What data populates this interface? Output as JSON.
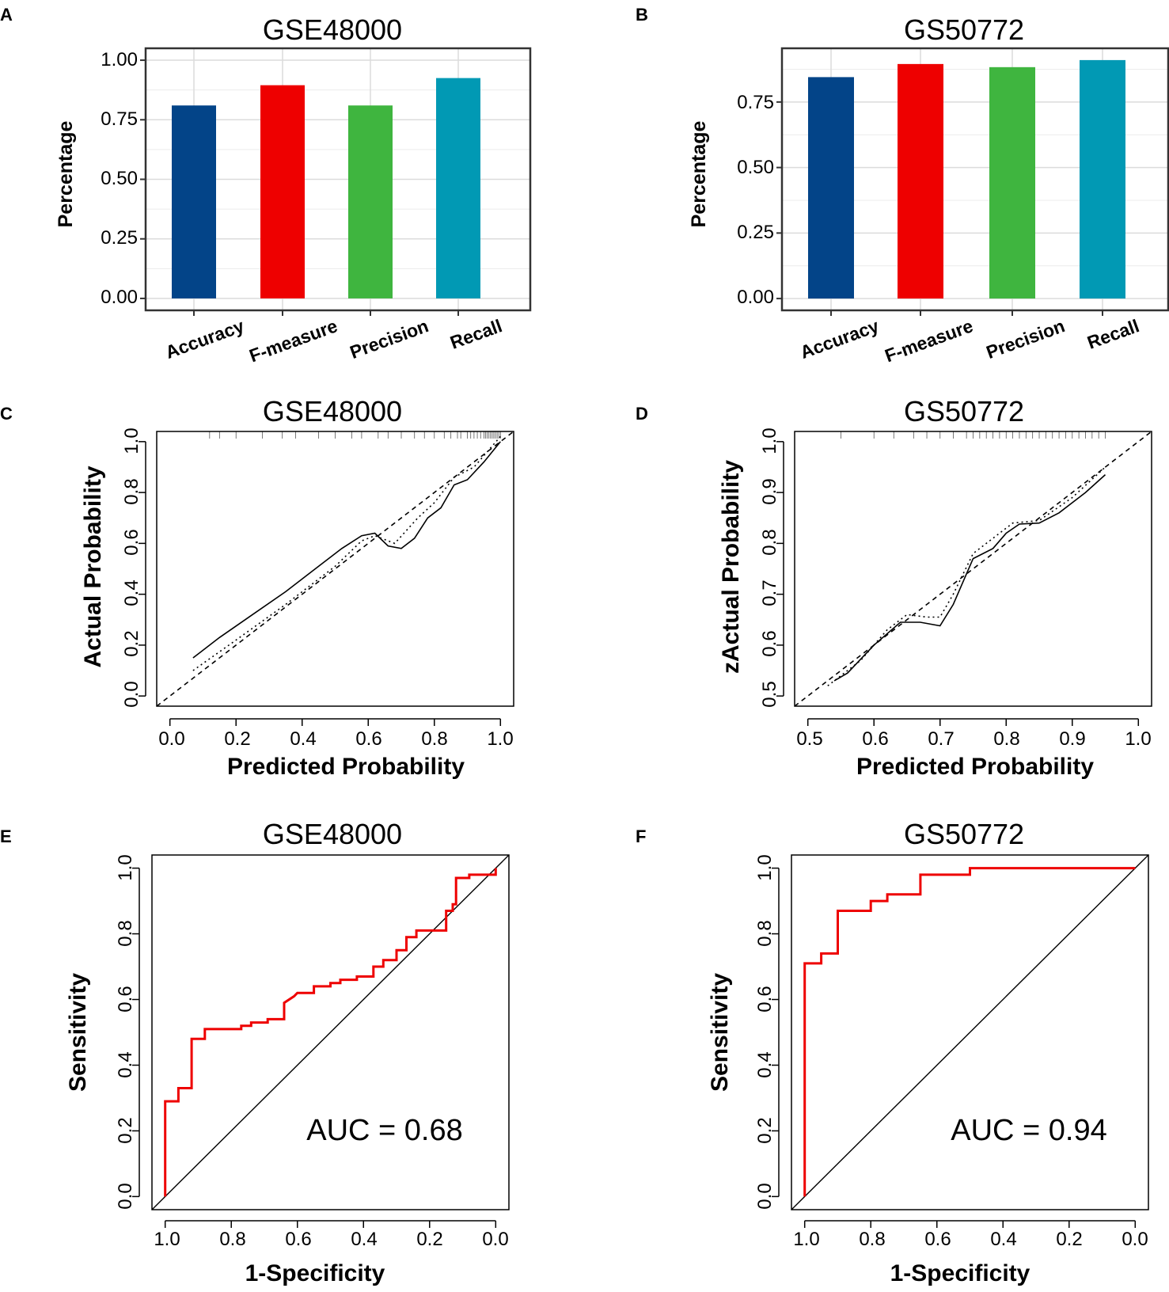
{
  "panels": {
    "A": {
      "letter": "A",
      "title": "GSE48000"
    },
    "B": {
      "letter": "B",
      "title": "GS50772"
    },
    "C": {
      "letter": "C",
      "title": "GSE48000"
    },
    "D": {
      "letter": "D",
      "title": "GS50772"
    },
    "E": {
      "letter": "E",
      "title": "GSE48000",
      "auc_label": "AUC = 0.68"
    },
    "F": {
      "letter": "F",
      "title": "GS50772",
      "auc_label": "AUC = 0.94"
    }
  },
  "chart_data": [
    {
      "panel": "A",
      "type": "bar",
      "title": "GSE48000",
      "categories": [
        "Accuracy",
        "F-measure",
        "Precision",
        "Recall"
      ],
      "values": [
        0.81,
        0.895,
        0.81,
        0.925
      ],
      "colors": [
        "#034488",
        "#ee0000",
        "#3fb53f",
        "#0199b4"
      ],
      "ylabel": "Percentage",
      "xlabel": "",
      "ylim": [
        -0.05,
        1.05
      ],
      "yticks": [
        "0.00",
        "0.25",
        "0.50",
        "0.75",
        "1.00"
      ],
      "grid": true
    },
    {
      "panel": "B",
      "type": "bar",
      "title": "GS50772",
      "categories": [
        "Accuracy",
        "F-measure",
        "Precision",
        "Recall"
      ],
      "values": [
        0.845,
        0.895,
        0.883,
        0.91
      ],
      "colors": [
        "#034488",
        "#ee0000",
        "#3fb53f",
        "#0199b4"
      ],
      "ylabel": "Percentage",
      "xlabel": "",
      "ylim": [
        -0.045,
        0.955
      ],
      "yticks": [
        "0.00",
        "0.25",
        "0.50",
        "0.75"
      ],
      "grid": true
    },
    {
      "panel": "C",
      "type": "line",
      "title": "GSE48000",
      "xlabel": "Predicted Probability",
      "ylabel": "Actual Probability",
      "xlim": [
        -0.04,
        1.04
      ],
      "ylim": [
        -0.04,
        1.04
      ],
      "xticks": [
        "0.0",
        "0.2",
        "0.4",
        "0.6",
        "0.8",
        "1.0"
      ],
      "yticks": [
        "0.0",
        "0.2",
        "0.4",
        "0.6",
        "0.8",
        "1.0"
      ],
      "rug": [
        0.12,
        0.15,
        0.2,
        0.28,
        0.34,
        0.38,
        0.45,
        0.5,
        0.55,
        0.58,
        0.63,
        0.66,
        0.7,
        0.74,
        0.77,
        0.8,
        0.83,
        0.85,
        0.87,
        0.88,
        0.9,
        0.91,
        0.92,
        0.93,
        0.94,
        0.95,
        0.955,
        0.96,
        0.965,
        0.97,
        0.975,
        0.98,
        0.985,
        0.99,
        0.995,
        1.0
      ],
      "series": [
        {
          "name": "ideal",
          "style": "dashed",
          "x": [
            -0.04,
            1.04
          ],
          "y": [
            -0.04,
            1.04
          ]
        },
        {
          "name": "apparent",
          "style": "dotted",
          "x": [
            0.07,
            0.2,
            0.35,
            0.5,
            0.58,
            0.62,
            0.68,
            0.75,
            0.8,
            0.86,
            0.92,
            1.0
          ],
          "y": [
            0.1,
            0.22,
            0.36,
            0.51,
            0.61,
            0.63,
            0.6,
            0.7,
            0.76,
            0.86,
            0.9,
            1.02
          ]
        },
        {
          "name": "bias-corrected",
          "style": "solid",
          "x": [
            0.07,
            0.15,
            0.25,
            0.35,
            0.45,
            0.52,
            0.58,
            0.62,
            0.66,
            0.7,
            0.74,
            0.78,
            0.82,
            0.86,
            0.9,
            0.95,
            1.0
          ],
          "y": [
            0.15,
            0.23,
            0.32,
            0.41,
            0.51,
            0.58,
            0.63,
            0.64,
            0.59,
            0.58,
            0.62,
            0.7,
            0.74,
            0.83,
            0.85,
            0.92,
            1.0
          ]
        }
      ]
    },
    {
      "panel": "D",
      "type": "line",
      "title": "GS50772",
      "xlabel": "Predicted Probability",
      "ylabel": "zActual Probability",
      "xlim": [
        0.48,
        1.02
      ],
      "ylim": [
        0.48,
        1.02
      ],
      "xticks": [
        "0.5",
        "0.6",
        "0.7",
        "0.8",
        "0.9",
        "1.0"
      ],
      "yticks": [
        "0.5",
        "0.6",
        "0.7",
        "0.8",
        "0.9",
        "1.0"
      ],
      "rug": [
        0.55,
        0.6,
        0.63,
        0.66,
        0.68,
        0.7,
        0.72,
        0.74,
        0.75,
        0.76,
        0.77,
        0.78,
        0.79,
        0.8,
        0.81,
        0.82,
        0.83,
        0.84,
        0.85,
        0.86,
        0.87,
        0.88,
        0.89,
        0.9,
        0.91,
        0.92,
        0.93,
        0.94,
        0.95
      ],
      "series": [
        {
          "name": "ideal",
          "style": "dashed",
          "x": [
            0.48,
            1.02
          ],
          "y": [
            0.48,
            1.02
          ]
        },
        {
          "name": "apparent",
          "style": "dotted",
          "x": [
            0.53,
            0.58,
            0.62,
            0.65,
            0.68,
            0.7,
            0.72,
            0.75,
            0.78,
            0.81,
            0.85,
            0.9,
            0.95
          ],
          "y": [
            0.52,
            0.57,
            0.63,
            0.66,
            0.655,
            0.655,
            0.7,
            0.78,
            0.81,
            0.84,
            0.845,
            0.89,
            0.95
          ]
        },
        {
          "name": "bias-corrected",
          "style": "solid",
          "x": [
            0.54,
            0.56,
            0.6,
            0.64,
            0.67,
            0.7,
            0.72,
            0.75,
            0.78,
            0.8,
            0.82,
            0.85,
            0.88,
            0.92,
            0.95
          ],
          "y": [
            0.53,
            0.545,
            0.6,
            0.645,
            0.645,
            0.638,
            0.68,
            0.77,
            0.79,
            0.82,
            0.838,
            0.84,
            0.86,
            0.9,
            0.935
          ]
        }
      ]
    },
    {
      "panel": "E",
      "type": "line",
      "title": "GSE48000",
      "xlabel": "1-Specificity",
      "ylabel": "Sensitivity",
      "xlim": [
        1.04,
        -0.04
      ],
      "ylim": [
        -0.04,
        1.04
      ],
      "xticks": [
        "1.0",
        "0.8",
        "0.6",
        "0.4",
        "0.2",
        "0.0"
      ],
      "yticks": [
        "0.0",
        "0.2",
        "0.4",
        "0.6",
        "0.8",
        "1.0"
      ],
      "auc": 0.68,
      "series": [
        {
          "name": "reference",
          "style": "solid",
          "color": "#000000",
          "x": [
            1.04,
            -0.04
          ],
          "y": [
            -0.04,
            1.04
          ]
        },
        {
          "name": "ROC",
          "style": "step",
          "color": "#ee0000",
          "x": [
            1.0,
            1.0,
            0.96,
            0.96,
            0.92,
            0.92,
            0.88,
            0.88,
            0.77,
            0.77,
            0.74,
            0.74,
            0.69,
            0.69,
            0.64,
            0.64,
            0.61,
            0.6,
            0.55,
            0.55,
            0.5,
            0.5,
            0.47,
            0.47,
            0.42,
            0.42,
            0.37,
            0.37,
            0.34,
            0.34,
            0.3,
            0.3,
            0.27,
            0.27,
            0.24,
            0.24,
            0.21,
            0.21,
            0.15,
            0.15,
            0.13,
            0.13,
            0.12,
            0.12,
            0.08,
            0.08,
            0.0,
            0.0
          ],
          "y": [
            0.0,
            0.29,
            0.29,
            0.33,
            0.33,
            0.48,
            0.48,
            0.51,
            0.51,
            0.52,
            0.52,
            0.53,
            0.53,
            0.54,
            0.54,
            0.59,
            0.61,
            0.62,
            0.62,
            0.64,
            0.64,
            0.65,
            0.65,
            0.66,
            0.66,
            0.67,
            0.67,
            0.7,
            0.7,
            0.72,
            0.72,
            0.75,
            0.75,
            0.79,
            0.79,
            0.81,
            0.81,
            0.81,
            0.81,
            0.87,
            0.87,
            0.89,
            0.89,
            0.97,
            0.97,
            0.98,
            0.98,
            1.0
          ]
        }
      ]
    },
    {
      "panel": "F",
      "type": "line",
      "title": "GS50772",
      "xlabel": "1-Specificity",
      "ylabel": "Sensitivity",
      "xlim": [
        1.04,
        -0.04
      ],
      "ylim": [
        -0.04,
        1.04
      ],
      "xticks": [
        "1.0",
        "0.8",
        "0.6",
        "0.4",
        "0.2",
        "0.0"
      ],
      "yticks": [
        "0.0",
        "0.2",
        "0.4",
        "0.6",
        "0.8",
        "1.0"
      ],
      "auc": 0.94,
      "series": [
        {
          "name": "reference",
          "style": "solid",
          "color": "#000000",
          "x": [
            1.04,
            -0.04
          ],
          "y": [
            -0.04,
            1.04
          ]
        },
        {
          "name": "ROC",
          "style": "step",
          "color": "#ee0000",
          "x": [
            1.0,
            1.0,
            0.95,
            0.95,
            0.9,
            0.9,
            0.8,
            0.8,
            0.75,
            0.75,
            0.65,
            0.65,
            0.5,
            0.5,
            0.0
          ],
          "y": [
            0.0,
            0.71,
            0.71,
            0.74,
            0.74,
            0.87,
            0.87,
            0.9,
            0.9,
            0.92,
            0.92,
            0.98,
            0.98,
            1.0,
            1.0
          ]
        }
      ]
    }
  ]
}
